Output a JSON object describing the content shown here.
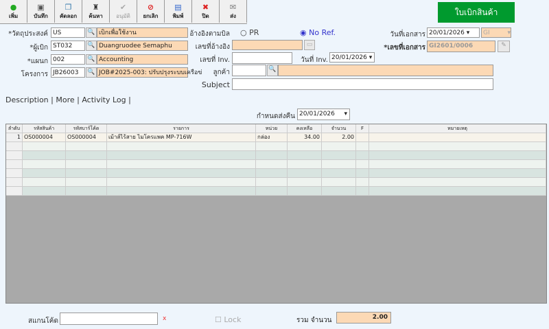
{
  "toolbar": [
    {
      "label": "เพิ่ม",
      "icon": "plus-icon",
      "g": "●",
      "c": "#2a2"
    },
    {
      "label": "บันทึก",
      "icon": "save-icon",
      "g": "▣",
      "c": "#555"
    },
    {
      "label": "คัดลอก",
      "icon": "copy-icon",
      "g": "❐",
      "c": "#37a"
    },
    {
      "label": "ค้นหา",
      "icon": "binoculars-icon",
      "g": "♜",
      "c": "#333"
    },
    {
      "label": "อนุมัติ",
      "icon": "approve-icon",
      "g": "✔",
      "c": "#aaa",
      "disabled": true
    },
    {
      "label": "ยกเลิก",
      "icon": "cancel-icon",
      "g": "⊘",
      "c": "#d22"
    },
    {
      "label": "พิมพ์",
      "icon": "print-icon",
      "g": "▤",
      "c": "#36c"
    },
    {
      "label": "ปิด",
      "icon": "close-icon",
      "g": "✖",
      "c": "#d22"
    },
    {
      "label": "ส่ง",
      "icon": "send-icon",
      "g": "✉",
      "c": "#777"
    }
  ],
  "title": "ใบเบิกสินค้า",
  "form": {
    "purpose_label": "*วัตถุประสงค์",
    "purpose_code": "US",
    "purpose_name": "เบิกเพื่อใช้งาน",
    "requester_label": "*ผู้เบิก",
    "requester_code": "ST032",
    "requester_name": "Duangruodee Semaphu",
    "dept_label": "*แผนก",
    "dept_code": "002",
    "dept_name": "Accounting",
    "project_label": "โครงการ",
    "project_code": "JB26003",
    "project_name": "JOB#2025-003: ปรับปรุงระบบเครือข่",
    "ref_label": "อ้างอิงตามบิล",
    "ref_pr": "PR",
    "ref_none": "No Ref.",
    "refno_label": "เลขที่อ้างอิง",
    "refno": "",
    "inv_label": "เลขที่ Inv.",
    "inv": "",
    "inv_date_label": "วันที่ Inv.",
    "inv_date": "20/01/2026",
    "customer_label": "ลูกค้า",
    "customer_code": "",
    "customer_name": "",
    "subject_label": "Subject",
    "subject": "",
    "docdate_label": "วันที่เอกสาร",
    "docdate": "20/01/2026",
    "doctype": "GI",
    "docno_label": "*เลขที่เอกสาร",
    "docno": "GI2601/0006"
  },
  "tabs": [
    "Description",
    "More",
    "Activity Log"
  ],
  "return_label": "กำหนดส่งคืน",
  "return_date": "20/01/2026",
  "grid": {
    "headers": [
      "ลำดับ",
      "รหัสสินค้า",
      "รหัสบาร์โค้ด",
      "รายการ",
      "หน่วย",
      "คงเหลือ",
      "จำนวน",
      "F",
      "หมายเหตุ"
    ],
    "rows": [
      [
        "1",
        "OS000004",
        "OS000004",
        "เม้าส์ไร้สาย ไมโครแพค MP-716W",
        "กล่อง",
        "34.00",
        "2.00",
        "",
        ""
      ]
    ]
  },
  "footer": {
    "scan_label": "สแกนโค้ด",
    "scan": "",
    "clear": "x",
    "lock": "Lock",
    "total_label": "รวม จำนวน",
    "total": "2.00"
  }
}
